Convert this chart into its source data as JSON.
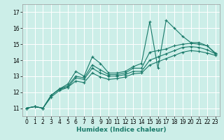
{
  "xlabel": "Humidex (Indice chaleur)",
  "bg_color": "#cceee8",
  "grid_color": "#ffffff",
  "line_color": "#1a7a6a",
  "xlim": [
    -0.5,
    23.5
  ],
  "ylim": [
    10.5,
    17.5
  ],
  "xticks": [
    0,
    1,
    2,
    3,
    4,
    5,
    6,
    7,
    8,
    9,
    10,
    11,
    12,
    13,
    14,
    15,
    16,
    17,
    18,
    19,
    20,
    21,
    22,
    23
  ],
  "yticks": [
    11,
    12,
    13,
    14,
    15,
    16,
    17
  ],
  "series1_x": [
    0,
    1,
    2,
    3,
    4,
    5,
    6,
    7,
    8,
    9,
    10,
    11,
    12,
    13,
    14,
    15,
    16,
    17,
    18,
    19,
    20,
    21,
    22,
    23
  ],
  "series1_y": [
    11.0,
    11.1,
    11.0,
    11.8,
    12.2,
    12.5,
    13.3,
    13.0,
    14.2,
    13.8,
    13.2,
    13.2,
    13.3,
    13.6,
    13.8,
    16.4,
    13.5,
    16.5,
    16.0,
    15.5,
    15.1,
    15.1,
    14.9,
    14.4
  ],
  "series2_x": [
    0,
    1,
    2,
    3,
    4,
    5,
    6,
    7,
    8,
    9,
    10,
    11,
    12,
    13,
    14,
    15,
    16,
    17,
    18,
    19,
    20,
    21,
    22,
    23
  ],
  "series2_y": [
    11.0,
    11.1,
    11.0,
    11.8,
    12.2,
    12.4,
    13.0,
    12.9,
    13.7,
    13.4,
    13.1,
    13.1,
    13.2,
    13.5,
    13.5,
    14.5,
    14.6,
    14.7,
    14.9,
    15.0,
    15.05,
    15.0,
    14.9,
    14.45
  ],
  "series3_x": [
    0,
    1,
    2,
    3,
    4,
    5,
    6,
    7,
    8,
    9,
    10,
    11,
    12,
    13,
    14,
    15,
    16,
    17,
    18,
    19,
    20,
    21,
    22,
    23
  ],
  "series3_y": [
    11.0,
    11.1,
    11.0,
    11.8,
    12.2,
    12.3,
    12.9,
    12.8,
    13.5,
    13.2,
    13.0,
    13.0,
    13.1,
    13.3,
    13.3,
    14.0,
    14.2,
    14.4,
    14.6,
    14.8,
    14.85,
    14.8,
    14.65,
    14.4
  ],
  "series4_x": [
    0,
    1,
    2,
    3,
    4,
    5,
    6,
    7,
    8,
    9,
    10,
    11,
    12,
    13,
    14,
    15,
    16,
    17,
    18,
    19,
    20,
    21,
    22,
    23
  ],
  "series4_y": [
    11.0,
    11.1,
    11.0,
    11.7,
    12.1,
    12.3,
    12.7,
    12.6,
    13.2,
    12.95,
    12.8,
    12.85,
    12.95,
    13.15,
    13.2,
    13.7,
    13.9,
    14.1,
    14.3,
    14.5,
    14.6,
    14.55,
    14.45,
    14.3
  ]
}
